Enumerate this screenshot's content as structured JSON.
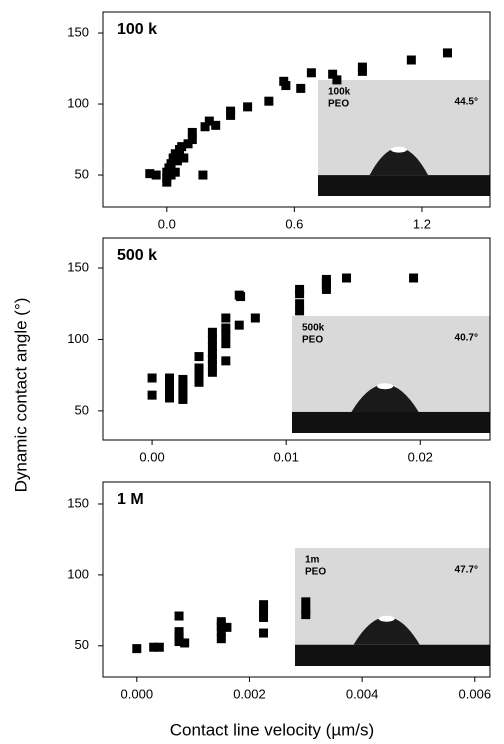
{
  "ylabel": "Dynamic contact angle (°)",
  "xlabel": "Contact line velocity (µm/s)",
  "chart_data": [
    {
      "type": "scatter",
      "title": "100 k",
      "color": "#000000",
      "inset_label": [
        "100k",
        "PEO"
      ],
      "inset_angle": "44.5°",
      "x": [
        -0.08,
        -0.05,
        0.0,
        0.0,
        0.0,
        0.01,
        0.02,
        0.02,
        0.03,
        0.04,
        0.04,
        0.05,
        0.06,
        0.07,
        0.08,
        0.1,
        0.12,
        0.12,
        0.17,
        0.18,
        0.2,
        0.23,
        0.3,
        0.3,
        0.38,
        0.48,
        0.55,
        0.56,
        0.63,
        0.68,
        0.78,
        0.8,
        0.92,
        0.92,
        1.15,
        1.32
      ],
      "values": [
        51,
        50,
        45,
        48,
        52,
        55,
        50,
        58,
        62,
        52,
        65,
        60,
        68,
        70,
        62,
        72,
        80,
        75,
        50,
        84,
        88,
        85,
        92,
        95,
        98,
        102,
        116,
        113,
        111,
        122,
        121,
        117,
        123,
        126,
        131,
        136
      ],
      "xlim": [
        -0.3,
        1.52
      ],
      "ylim": [
        27.5,
        164.8
      ],
      "xticks": [
        {
          "value": 0,
          "label": "0.0"
        },
        0.6,
        1.2
      ],
      "yticks": [
        50,
        100,
        150
      ]
    },
    {
      "type": "scatter",
      "title": "500 k",
      "color": "#000000",
      "inset_label": [
        "500k",
        "PEO"
      ],
      "inset_angle": "40.7°",
      "x": [
        0.0,
        0.0,
        0.0013,
        0.0013,
        0.0013,
        0.0013,
        0.0013,
        0.0013,
        0.0023,
        0.0023,
        0.0023,
        0.0023,
        0.0023,
        0.0035,
        0.0035,
        0.0035,
        0.0035,
        0.0045,
        0.0045,
        0.0045,
        0.0045,
        0.0045,
        0.0045,
        0.0045,
        0.0055,
        0.0055,
        0.0055,
        0.0055,
        0.0055,
        0.0065,
        0.0066,
        0.0065,
        0.0077,
        0.011,
        0.011,
        0.011,
        0.011,
        0.013,
        0.013,
        0.013,
        0.013,
        0.0145,
        0.0195
      ],
      "values": [
        73,
        61,
        73,
        70,
        67,
        65,
        62,
        59,
        72,
        68,
        65,
        61,
        58,
        88,
        80,
        76,
        70,
        105,
        100,
        95,
        90,
        86,
        82,
        77,
        115,
        108,
        103,
        97,
        85,
        131,
        130,
        110,
        115,
        135,
        132,
        125,
        120,
        142,
        140,
        137,
        135,
        143,
        143
      ],
      "xlim": [
        -0.00366,
        0.0252
      ],
      "ylim": [
        29.6,
        171
      ],
      "xticks": [
        {
          "value": 0,
          "label": "0.00"
        },
        0.01,
        0.02
      ],
      "yticks": [
        50,
        100,
        150
      ]
    },
    {
      "type": "scatter",
      "title": "1 M",
      "color": "#000000",
      "inset_label": [
        "1m",
        "PEO"
      ],
      "inset_angle": "47.7°",
      "x": [
        0.0,
        0.0003,
        0.0004,
        0.00075,
        0.00075,
        0.00075,
        0.00075,
        0.00075,
        0.00085,
        0.0015,
        0.0015,
        0.0015,
        0.0015,
        0.0016,
        0.00225,
        0.00225,
        0.00225,
        0.00225,
        0.003,
        0.003,
        0.003
      ],
      "values": [
        48,
        49,
        49,
        71,
        60,
        57,
        55,
        53,
        52,
        67,
        64,
        60,
        55,
        63,
        79,
        75,
        70,
        59,
        81,
        75,
        72
      ],
      "xlim": [
        -0.0006,
        0.00627
      ],
      "ylim": [
        28,
        165.5
      ],
      "xticks": [
        {
          "value": 0,
          "label": "0.000"
        },
        {
          "value": 0.002,
          "label": "0.002"
        },
        {
          "value": 0.004,
          "label": "0.004"
        },
        {
          "value": 0.006,
          "label": "0.006"
        }
      ],
      "yticks": [
        50,
        100,
        150
      ]
    }
  ]
}
